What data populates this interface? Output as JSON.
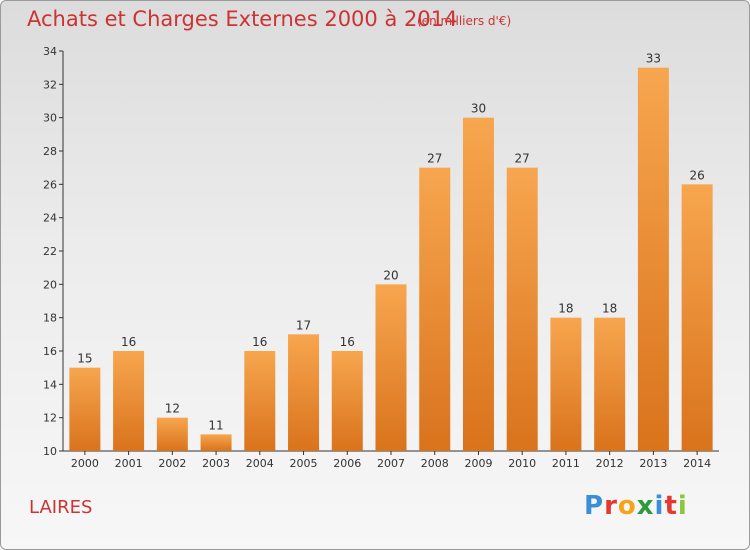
{
  "header": {
    "title": "Achats et Charges Externes 2000 à 2014",
    "unit": "(en milliers d'€)"
  },
  "footer": {
    "commune": "LAIRES",
    "brand": "Proxiti"
  },
  "colors": {
    "bar_light": "#f7a64f",
    "bar_dark": "#d9731c",
    "title": "#cc3333",
    "axis": "#333333"
  },
  "chart_data": {
    "type": "bar",
    "title": "Achats et Charges Externes 2000 à 2014",
    "subtitle": "(en milliers d'€)",
    "xlabel": "",
    "ylabel": "",
    "categories": [
      "2000",
      "2001",
      "2002",
      "2003",
      "2004",
      "2005",
      "2006",
      "2007",
      "2008",
      "2009",
      "2010",
      "2011",
      "2012",
      "2013",
      "2014"
    ],
    "values": [
      15,
      16,
      12,
      11,
      16,
      17,
      16,
      20,
      27,
      30,
      27,
      18,
      18,
      33,
      26
    ],
    "ylim": [
      10,
      34
    ],
    "yticks": [
      10,
      12,
      14,
      16,
      18,
      20,
      22,
      24,
      26,
      28,
      30,
      32,
      34
    ],
    "grid": false,
    "legend": "none"
  }
}
